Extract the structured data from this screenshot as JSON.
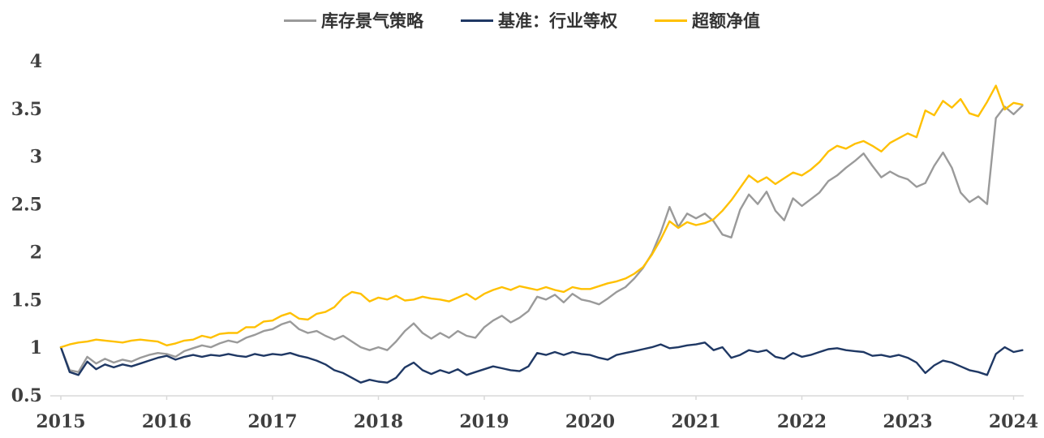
{
  "chart_data": {
    "type": "line",
    "title": "",
    "legend_position": "top",
    "grid": false,
    "x_axis": {
      "ticks": [
        2015,
        2016,
        2017,
        2018,
        2019,
        2020,
        2021,
        2022,
        2023,
        2024
      ],
      "range": [
        2015,
        2024.1
      ]
    },
    "y_axis": {
      "ticks": [
        0.5,
        1,
        1.5,
        2,
        2.5,
        3,
        3.5,
        4
      ],
      "range": [
        0.5,
        4
      ]
    },
    "axis_color": "#d9d9d9",
    "tick_label_color": "#3f3f3f",
    "x0": 2015,
    "dx": 0.0833333,
    "series": [
      {
        "name": "库存景气策略",
        "color": "#9a9a9a",
        "values": [
          1.0,
          0.76,
          0.74,
          0.9,
          0.83,
          0.88,
          0.84,
          0.87,
          0.85,
          0.89,
          0.92,
          0.94,
          0.93,
          0.9,
          0.96,
          0.99,
          1.02,
          1.0,
          1.04,
          1.07,
          1.05,
          1.1,
          1.13,
          1.17,
          1.19,
          1.24,
          1.27,
          1.19,
          1.15,
          1.17,
          1.12,
          1.08,
          1.12,
          1.06,
          1.0,
          0.97,
          1.0,
          0.97,
          1.06,
          1.17,
          1.25,
          1.15,
          1.09,
          1.15,
          1.1,
          1.17,
          1.12,
          1.1,
          1.21,
          1.28,
          1.33,
          1.26,
          1.31,
          1.38,
          1.53,
          1.5,
          1.55,
          1.47,
          1.56,
          1.5,
          1.48,
          1.45,
          1.51,
          1.58,
          1.63,
          1.72,
          1.83,
          1.98,
          2.2,
          2.47,
          2.26,
          2.4,
          2.35,
          2.4,
          2.32,
          2.18,
          2.15,
          2.44,
          2.6,
          2.5,
          2.63,
          2.43,
          2.33,
          2.56,
          2.48,
          2.55,
          2.62,
          2.74,
          2.8,
          2.88,
          2.95,
          3.03,
          2.9,
          2.78,
          2.84,
          2.79,
          2.76,
          2.68,
          2.72,
          2.9,
          3.04,
          2.88,
          2.62,
          2.52,
          2.58,
          2.5,
          3.4,
          3.52,
          3.44,
          3.53
        ]
      },
      {
        "name": "基准：行业等权",
        "color": "#1f3864",
        "values": [
          1.0,
          0.74,
          0.71,
          0.85,
          0.77,
          0.82,
          0.79,
          0.82,
          0.8,
          0.83,
          0.86,
          0.89,
          0.91,
          0.87,
          0.9,
          0.92,
          0.9,
          0.92,
          0.91,
          0.93,
          0.91,
          0.9,
          0.93,
          0.91,
          0.93,
          0.92,
          0.94,
          0.91,
          0.89,
          0.86,
          0.82,
          0.76,
          0.73,
          0.68,
          0.63,
          0.66,
          0.64,
          0.63,
          0.68,
          0.79,
          0.84,
          0.76,
          0.72,
          0.76,
          0.73,
          0.77,
          0.71,
          0.74,
          0.77,
          0.8,
          0.78,
          0.76,
          0.75,
          0.8,
          0.94,
          0.92,
          0.95,
          0.92,
          0.95,
          0.93,
          0.92,
          0.89,
          0.87,
          0.92,
          0.94,
          0.96,
          0.98,
          1.0,
          1.03,
          0.99,
          1.0,
          1.02,
          1.03,
          1.05,
          0.97,
          1.0,
          0.89,
          0.92,
          0.97,
          0.95,
          0.97,
          0.9,
          0.88,
          0.94,
          0.9,
          0.92,
          0.95,
          0.98,
          0.99,
          0.97,
          0.96,
          0.95,
          0.91,
          0.92,
          0.9,
          0.92,
          0.89,
          0.84,
          0.73,
          0.81,
          0.86,
          0.84,
          0.8,
          0.76,
          0.74,
          0.71,
          0.93,
          1.0,
          0.95,
          0.97
        ]
      },
      {
        "name": "超额净值",
        "color": "#ffc000",
        "values": [
          1.0,
          1.03,
          1.05,
          1.06,
          1.08,
          1.07,
          1.06,
          1.05,
          1.07,
          1.08,
          1.07,
          1.06,
          1.02,
          1.04,
          1.07,
          1.08,
          1.12,
          1.1,
          1.14,
          1.15,
          1.15,
          1.21,
          1.21,
          1.27,
          1.28,
          1.33,
          1.36,
          1.3,
          1.29,
          1.35,
          1.37,
          1.42,
          1.52,
          1.58,
          1.56,
          1.48,
          1.52,
          1.5,
          1.54,
          1.49,
          1.5,
          1.53,
          1.51,
          1.5,
          1.48,
          1.52,
          1.56,
          1.5,
          1.56,
          1.6,
          1.63,
          1.6,
          1.64,
          1.62,
          1.6,
          1.63,
          1.6,
          1.58,
          1.63,
          1.61,
          1.61,
          1.64,
          1.67,
          1.69,
          1.72,
          1.77,
          1.84,
          1.97,
          2.13,
          2.32,
          2.25,
          2.31,
          2.28,
          2.3,
          2.34,
          2.43,
          2.54,
          2.67,
          2.8,
          2.73,
          2.78,
          2.71,
          2.77,
          2.83,
          2.8,
          2.86,
          2.94,
          3.05,
          3.11,
          3.08,
          3.13,
          3.16,
          3.11,
          3.05,
          3.14,
          3.19,
          3.24,
          3.2,
          3.48,
          3.43,
          3.58,
          3.51,
          3.6,
          3.45,
          3.42,
          3.57,
          3.74,
          3.49,
          3.56,
          3.54
        ]
      }
    ]
  }
}
